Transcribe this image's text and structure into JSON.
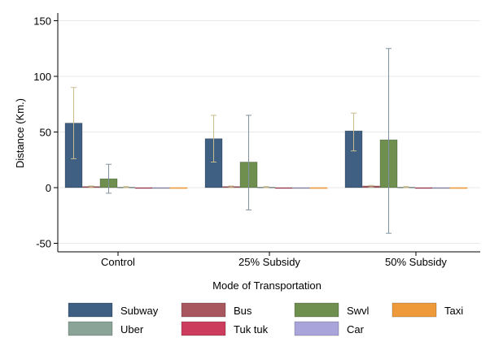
{
  "chart_data": {
    "type": "bar",
    "title": "",
    "xlabel": "Mode of Transportation",
    "ylabel": "Distance (Km.)",
    "ylim": [
      -55,
      160
    ],
    "yticks": [
      -50,
      0,
      50,
      100,
      150
    ],
    "ytick_labels": [
      "-50",
      "0",
      "50",
      "100",
      "150"
    ],
    "grid": true,
    "legend_position": "bottom",
    "categories": [
      "Control",
      "25% Subsidy",
      "50% Subsidy"
    ],
    "series": [
      {
        "name": "Subway",
        "color": "#3f5f83",
        "values": [
          58,
          44,
          51
        ],
        "err_low": [
          26,
          23,
          33
        ],
        "err_high": [
          90,
          65,
          67
        ]
      },
      {
        "name": "Bus",
        "color": "#a8575e",
        "values": [
          1,
          1,
          1.5
        ],
        "err_low": [
          0,
          0,
          0.5
        ],
        "err_high": [
          1.5,
          1.5,
          2
        ]
      },
      {
        "name": "Swvl",
        "color": "#6f8f4f",
        "values": [
          8,
          23,
          43
        ],
        "err_low": [
          -5,
          -20,
          -41
        ],
        "err_high": [
          21,
          65,
          125
        ]
      },
      {
        "name": "Taxi",
        "color": "#ef9a3a",
        "values": [
          0,
          0,
          0
        ],
        "err_low": [
          0,
          0,
          0
        ],
        "err_high": [
          0,
          0,
          0
        ]
      },
      {
        "name": "Uber",
        "color": "#8aa497",
        "values": [
          0.5,
          0.5,
          0.5
        ],
        "err_low": [
          0,
          0,
          0
        ],
        "err_high": [
          1,
          1,
          1
        ]
      },
      {
        "name": "Tuk tuk",
        "color": "#cc3c5d",
        "values": [
          0,
          0,
          0
        ],
        "err_low": [
          0,
          0,
          0
        ],
        "err_high": [
          0,
          0,
          0
        ]
      },
      {
        "name": "Car",
        "color": "#a9a4da",
        "values": [
          0,
          0,
          0
        ],
        "err_low": [
          0,
          0,
          0
        ],
        "err_high": [
          0,
          0,
          0
        ]
      }
    ],
    "draw_order": [
      "Subway",
      "Bus",
      "Swvl",
      "Uber",
      "Tuk tuk",
      "Car",
      "Taxi"
    ],
    "error_bar_color": "#c9bd8f",
    "error_bar_colors": {
      "Swvl": "#7f94a3"
    }
  }
}
